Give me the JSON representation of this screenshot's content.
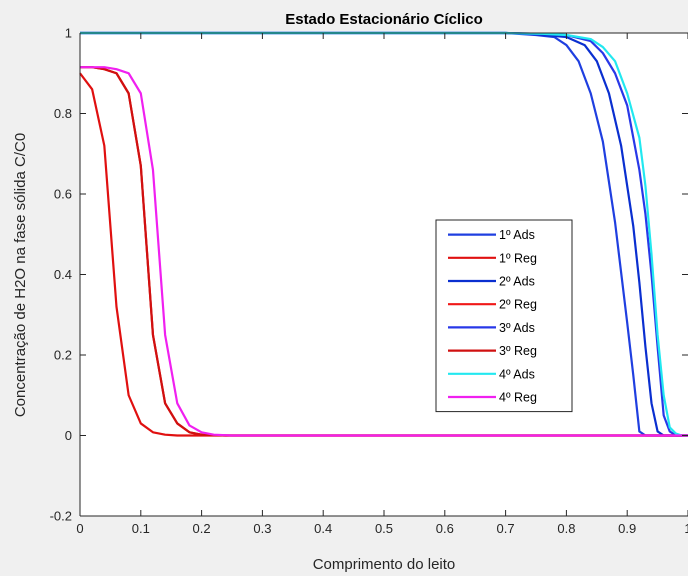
{
  "chart_data": {
    "type": "line",
    "title": "Estado Estacionário Cíclico",
    "xlabel": "Comprimento do leito",
    "ylabel": "Concentração de H2O na fase sólida C/C0",
    "xlim": [
      0,
      1
    ],
    "ylim": [
      -0.2,
      1
    ],
    "xticks": [
      0,
      0.1,
      0.2,
      0.3,
      0.4,
      0.5,
      0.6,
      0.7,
      0.8,
      0.9,
      1
    ],
    "xtick_labels": [
      "0",
      "0.1",
      "0.2",
      "0.3",
      "0.4",
      "0.5",
      "0.6",
      "0.7",
      "0.8",
      "0.9",
      "1"
    ],
    "yticks": [
      -0.2,
      0,
      0.2,
      0.4,
      0.6,
      0.8,
      1
    ],
    "ytick_labels": [
      "-0.2",
      "0",
      "0.2",
      "0.4",
      "0.6",
      "0.8",
      "1"
    ],
    "grid": false,
    "legend_position": "inside-right",
    "series": [
      {
        "name": "1º Ads",
        "color": "#1f3fe0",
        "x": [
          0,
          0.1,
          0.2,
          0.3,
          0.4,
          0.5,
          0.6,
          0.7,
          0.75,
          0.78,
          0.8,
          0.82,
          0.84,
          0.86,
          0.88,
          0.9,
          0.91,
          0.92,
          0.93,
          0.95,
          1
        ],
        "y": [
          1,
          1,
          1,
          1,
          1,
          1,
          1,
          1,
          0.995,
          0.99,
          0.97,
          0.93,
          0.85,
          0.73,
          0.53,
          0.28,
          0.15,
          0.01,
          0,
          0,
          0
        ]
      },
      {
        "name": "1º Reg",
        "color": "#e01010",
        "x": [
          0,
          0.02,
          0.04,
          0.06,
          0.08,
          0.1,
          0.12,
          0.14,
          0.16,
          0.2,
          0.3,
          1
        ],
        "y": [
          0.9,
          0.86,
          0.72,
          0.32,
          0.1,
          0.03,
          0.008,
          0.002,
          0,
          0,
          0,
          0
        ]
      },
      {
        "name": "2º Ads",
        "color": "#0a2fd0",
        "x": [
          0,
          0.2,
          0.4,
          0.6,
          0.7,
          0.74,
          0.8,
          0.83,
          0.85,
          0.87,
          0.89,
          0.91,
          0.92,
          0.93,
          0.94,
          0.95,
          0.96,
          0.97,
          1
        ],
        "y": [
          1,
          1,
          1,
          1,
          1,
          0.998,
          0.99,
          0.97,
          0.93,
          0.85,
          0.72,
          0.52,
          0.38,
          0.22,
          0.08,
          0.01,
          0,
          0,
          0
        ]
      },
      {
        "name": "2º Reg",
        "color": "#f01818",
        "x": [
          0,
          0.02,
          0.04,
          0.06,
          0.08,
          0.1,
          0.12,
          0.14,
          0.16,
          0.18,
          0.2,
          0.24,
          0.3,
          1
        ],
        "y": [
          0.915,
          0.915,
          0.91,
          0.9,
          0.85,
          0.67,
          0.25,
          0.08,
          0.03,
          0.008,
          0.002,
          0,
          0,
          0
        ]
      },
      {
        "name": "3º Ads",
        "color": "#2838e8",
        "x": [
          0,
          0.2,
          0.4,
          0.6,
          0.7,
          0.76,
          0.8,
          0.84,
          0.86,
          0.88,
          0.9,
          0.92,
          0.93,
          0.94,
          0.95,
          0.96,
          0.97,
          0.98,
          1
        ],
        "y": [
          1,
          1,
          1,
          1,
          1,
          0.998,
          0.995,
          0.98,
          0.95,
          0.9,
          0.82,
          0.66,
          0.55,
          0.4,
          0.22,
          0.05,
          0.01,
          0,
          0
        ]
      },
      {
        "name": "3º Reg",
        "color": "#d01010",
        "x": [
          0,
          0.02,
          0.04,
          0.06,
          0.08,
          0.1,
          0.12,
          0.14,
          0.16,
          0.18,
          0.2,
          0.24,
          0.3,
          1
        ],
        "y": [
          0.915,
          0.915,
          0.91,
          0.9,
          0.85,
          0.67,
          0.25,
          0.08,
          0.03,
          0.008,
          0.002,
          0,
          0,
          0
        ]
      },
      {
        "name": "4º Ads",
        "color": "#22e8f0",
        "x": [
          0,
          0.2,
          0.4,
          0.6,
          0.7,
          0.76,
          0.8,
          0.84,
          0.86,
          0.88,
          0.9,
          0.92,
          0.93,
          0.94,
          0.95,
          0.96,
          0.97,
          0.98,
          0.99,
          1
        ],
        "y": [
          1,
          1,
          1,
          1,
          1,
          0.998,
          0.995,
          0.985,
          0.965,
          0.93,
          0.85,
          0.74,
          0.62,
          0.45,
          0.25,
          0.1,
          0.02,
          0.005,
          0,
          0
        ]
      },
      {
        "name": "4º Reg",
        "color": "#f020f0",
        "x": [
          0,
          0.02,
          0.04,
          0.06,
          0.08,
          0.1,
          0.12,
          0.14,
          0.16,
          0.18,
          0.2,
          0.22,
          0.25,
          0.3,
          1
        ],
        "y": [
          0.915,
          0.915,
          0.915,
          0.91,
          0.9,
          0.85,
          0.66,
          0.25,
          0.08,
          0.025,
          0.008,
          0.002,
          0,
          0,
          0
        ]
      }
    ]
  }
}
